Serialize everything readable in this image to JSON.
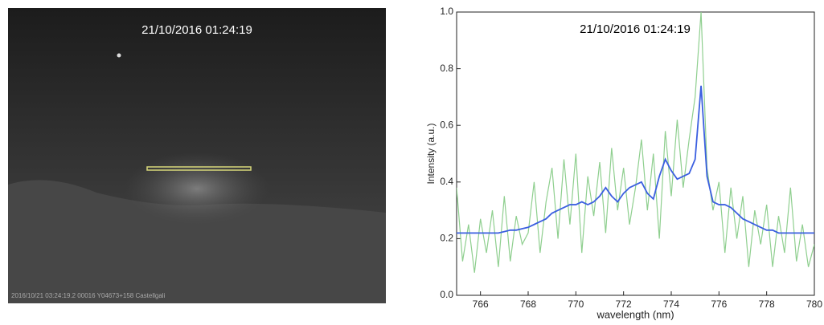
{
  "image": {
    "timestamp": "21/10/2016 01:24:19",
    "footer": "2016/10/21 03:24:19.2  00016  Y04673+158  Castellgali"
  },
  "chart_data": {
    "type": "line",
    "annotation": "21/10/2016 01:24:19",
    "x_label": "wavelength (nm)",
    "y_label": "Intensity (a.u.)",
    "xlim": [
      765,
      780
    ],
    "xticks": [
      766,
      768,
      770,
      772,
      774,
      776,
      778,
      780
    ],
    "ylim": [
      0,
      1
    ],
    "yticks": [
      {
        "value": 0,
        "label": "0.0"
      },
      0.2,
      0.4,
      0.6,
      0.8,
      {
        "value": 1,
        "label": "1.0"
      }
    ],
    "x": [
      765,
      765.25,
      765.5,
      765.75,
      766,
      766.25,
      766.5,
      766.75,
      767,
      767.25,
      767.5,
      767.75,
      768,
      768.25,
      768.5,
      768.75,
      769,
      769.25,
      769.5,
      769.75,
      770,
      770.25,
      770.5,
      770.75,
      771,
      771.25,
      771.5,
      771.75,
      772,
      772.25,
      772.5,
      772.75,
      773,
      773.25,
      773.5,
      773.75,
      774,
      774.25,
      774.5,
      774.75,
      775,
      775.25,
      775.5,
      775.75,
      776,
      776.25,
      776.5,
      776.75,
      777,
      777.25,
      777.5,
      777.75,
      778,
      778.25,
      778.5,
      778.75,
      779,
      779.25,
      779.5,
      779.75,
      780
    ],
    "series": [
      {
        "color": "#8fcf8f",
        "width": 1.2,
        "values": [
          0.38,
          0.12,
          0.25,
          0.08,
          0.27,
          0.15,
          0.3,
          0.1,
          0.35,
          0.12,
          0.28,
          0.18,
          0.22,
          0.4,
          0.15,
          0.33,
          0.45,
          0.2,
          0.48,
          0.25,
          0.5,
          0.15,
          0.42,
          0.28,
          0.47,
          0.22,
          0.52,
          0.3,
          0.45,
          0.25,
          0.38,
          0.55,
          0.3,
          0.5,
          0.2,
          0.58,
          0.35,
          0.62,
          0.38,
          0.55,
          0.7,
          1.0,
          0.45,
          0.3,
          0.4,
          0.15,
          0.38,
          0.2,
          0.35,
          0.1,
          0.3,
          0.18,
          0.32,
          0.1,
          0.28,
          0.15,
          0.38,
          0.12,
          0.25,
          0.1,
          0.18
        ]
      },
      {
        "color": "#3b5fe0",
        "width": 1.8,
        "values": [
          0.22,
          0.22,
          0.22,
          0.22,
          0.22,
          0.22,
          0.22,
          0.22,
          0.225,
          0.23,
          0.23,
          0.235,
          0.24,
          0.25,
          0.26,
          0.27,
          0.29,
          0.3,
          0.31,
          0.32,
          0.32,
          0.33,
          0.32,
          0.33,
          0.35,
          0.38,
          0.35,
          0.33,
          0.36,
          0.38,
          0.39,
          0.4,
          0.36,
          0.34,
          0.42,
          0.48,
          0.44,
          0.41,
          0.42,
          0.43,
          0.48,
          0.74,
          0.42,
          0.33,
          0.32,
          0.32,
          0.31,
          0.29,
          0.27,
          0.26,
          0.25,
          0.24,
          0.23,
          0.23,
          0.22,
          0.22,
          0.22,
          0.22,
          0.22,
          0.22,
          0.22
        ]
      }
    ]
  }
}
